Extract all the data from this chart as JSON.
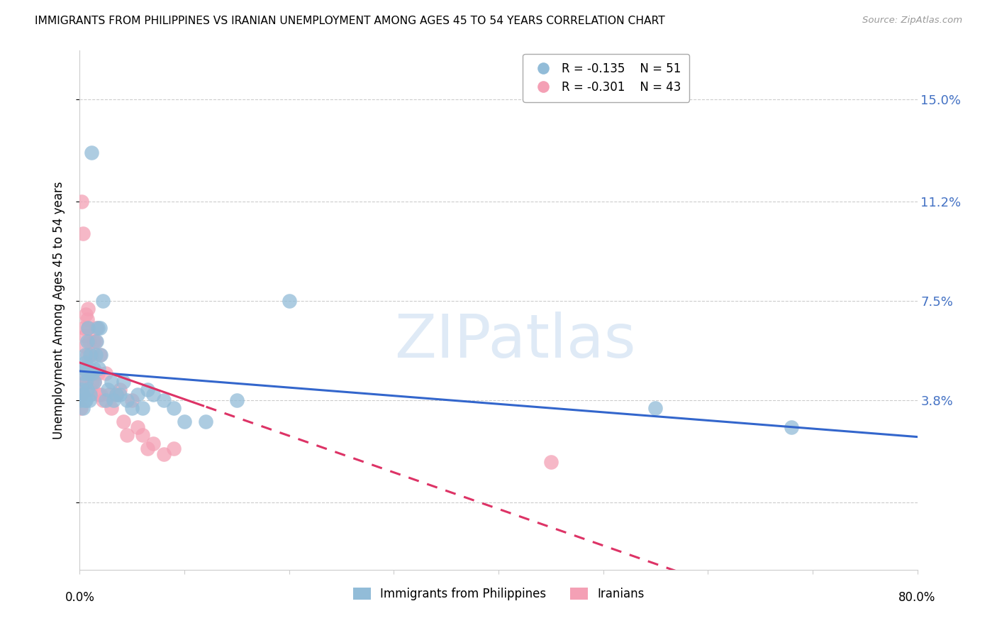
{
  "title": "IMMIGRANTS FROM PHILIPPINES VS IRANIAN UNEMPLOYMENT AMONG AGES 45 TO 54 YEARS CORRELATION CHART",
  "source": "Source: ZipAtlas.com",
  "ylabel": "Unemployment Among Ages 45 to 54 years",
  "yticks": [
    0.0,
    0.038,
    0.075,
    0.112,
    0.15
  ],
  "ytick_labels": [
    "",
    "3.8%",
    "7.5%",
    "11.2%",
    "15.0%"
  ],
  "xlim": [
    0.0,
    0.8
  ],
  "ylim": [
    -0.025,
    0.168
  ],
  "color1": "#92bcd8",
  "color2": "#f4a0b5",
  "line_color1": "#3366cc",
  "line_color2": "#dd3366",
  "legend1_label": "Immigrants from Philippines",
  "legend2_label": "Iranians",
  "r1": -0.135,
  "n1": 51,
  "r2": -0.301,
  "n2": 43,
  "philippines_x": [
    0.001,
    0.002,
    0.003,
    0.003,
    0.004,
    0.004,
    0.005,
    0.005,
    0.005,
    0.006,
    0.006,
    0.007,
    0.007,
    0.008,
    0.008,
    0.009,
    0.009,
    0.01,
    0.01,
    0.011,
    0.012,
    0.013,
    0.014,
    0.015,
    0.016,
    0.017,
    0.018,
    0.019,
    0.02,
    0.022,
    0.025,
    0.027,
    0.03,
    0.032,
    0.035,
    0.038,
    0.042,
    0.045,
    0.05,
    0.055,
    0.06,
    0.065,
    0.07,
    0.08,
    0.09,
    0.1,
    0.12,
    0.15,
    0.2,
    0.55,
    0.68
  ],
  "philippines_y": [
    0.038,
    0.042,
    0.04,
    0.035,
    0.05,
    0.048,
    0.055,
    0.038,
    0.052,
    0.045,
    0.038,
    0.06,
    0.042,
    0.065,
    0.048,
    0.05,
    0.038,
    0.055,
    0.04,
    0.13,
    0.048,
    0.05,
    0.045,
    0.055,
    0.06,
    0.065,
    0.05,
    0.065,
    0.055,
    0.075,
    0.038,
    0.042,
    0.045,
    0.038,
    0.04,
    0.04,
    0.045,
    0.038,
    0.035,
    0.04,
    0.035,
    0.042,
    0.04,
    0.038,
    0.035,
    0.03,
    0.03,
    0.038,
    0.075,
    0.035,
    0.028
  ],
  "iranians_x": [
    0.001,
    0.002,
    0.002,
    0.003,
    0.003,
    0.004,
    0.004,
    0.005,
    0.005,
    0.006,
    0.006,
    0.007,
    0.007,
    0.008,
    0.008,
    0.009,
    0.01,
    0.011,
    0.012,
    0.013,
    0.014,
    0.015,
    0.016,
    0.017,
    0.018,
    0.019,
    0.02,
    0.022,
    0.025,
    0.028,
    0.03,
    0.035,
    0.038,
    0.042,
    0.045,
    0.05,
    0.055,
    0.06,
    0.065,
    0.07,
    0.08,
    0.09,
    0.45
  ],
  "iranians_y": [
    0.035,
    0.04,
    0.112,
    0.05,
    0.1,
    0.045,
    0.065,
    0.062,
    0.058,
    0.045,
    0.07,
    0.068,
    0.055,
    0.072,
    0.065,
    0.06,
    0.042,
    0.055,
    0.045,
    0.06,
    0.045,
    0.06,
    0.065,
    0.048,
    0.04,
    0.055,
    0.04,
    0.038,
    0.048,
    0.04,
    0.035,
    0.04,
    0.042,
    0.03,
    0.025,
    0.038,
    0.028,
    0.025,
    0.02,
    0.022,
    0.018,
    0.02,
    0.015
  ]
}
